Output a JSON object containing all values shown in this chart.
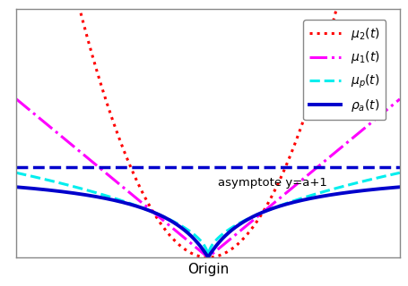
{
  "a": 1,
  "xlim": [
    -3.5,
    3.5
  ],
  "ylim": [
    0,
    5.5
  ],
  "asymptote_y": 2,
  "asymptote_label": "asymptote y=a+1",
  "xlabel": "Origin",
  "legend": [
    {
      "label": "$\\mu_2(t)$",
      "color": "#ff0000",
      "linestyle": "dotted",
      "linewidth": 2.2
    },
    {
      "label": "$\\mu_1(t)$",
      "color": "#ff00ff",
      "linestyle": "dashdot",
      "linewidth": 2.2
    },
    {
      "label": "$\\mu_p(t)$",
      "color": "#00eeee",
      "linestyle": "dashed",
      "linewidth": 2.2
    },
    {
      "label": "$\\rho_a(t)$",
      "color": "#0000cc",
      "linestyle": "solid",
      "linewidth": 2.8
    }
  ],
  "asymptote_color": "#0000cc",
  "asymptote_linestyle": "dashed",
  "asymptote_linewidth": 2.5,
  "background": "#ffffff",
  "num_points": 2000
}
